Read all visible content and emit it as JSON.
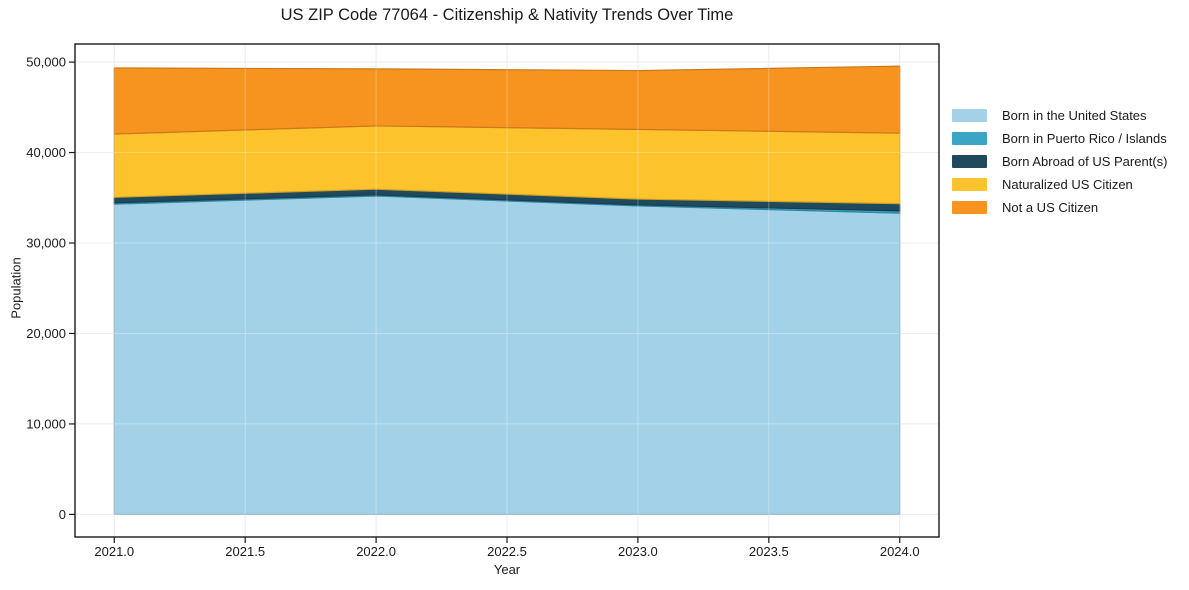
{
  "chart": {
    "title": "US ZIP Code 77064 - Citizenship & Nativity Trends Over Time",
    "xlabel": "Year",
    "ylabel": "Population"
  },
  "chart_data": {
    "type": "area",
    "stacked": true,
    "title": "US ZIP Code 77064 - Citizenship & Nativity Trends Over Time",
    "xlabel": "Year",
    "ylabel": "Population",
    "x": [
      2021,
      2022,
      2023,
      2024
    ],
    "series": [
      {
        "name": "Born in the United States",
        "color": "#a3d2e8",
        "values": [
          34300,
          35200,
          34100,
          33300
        ]
      },
      {
        "name": "Born in Puerto Rico / Islands",
        "color": "#3aa5c5",
        "values": [
          150,
          130,
          120,
          250
        ]
      },
      {
        "name": "Born Abroad of US Parent(s)",
        "color": "#1f4a5e",
        "values": [
          600,
          620,
          640,
          800
        ]
      },
      {
        "name": "Naturalized US Citizen",
        "color": "#fcc32d",
        "values": [
          7000,
          7000,
          7700,
          7800
        ]
      },
      {
        "name": "Not a US Citizen",
        "color": "#f7941f",
        "values": [
          7300,
          6300,
          6500,
          7400
        ]
      }
    ],
    "totals": [
      49350,
      49250,
      49060,
      49550
    ],
    "xlim": [
      2020.85,
      2024.15
    ],
    "ylim": [
      -2500,
      52000
    ],
    "x_ticks": [
      {
        "v": 2021.0,
        "label": "2021.0"
      },
      {
        "v": 2021.5,
        "label": "2021.5"
      },
      {
        "v": 2022.0,
        "label": "2022.0"
      },
      {
        "v": 2022.5,
        "label": "2022.5"
      },
      {
        "v": 2023.0,
        "label": "2023.0"
      },
      {
        "v": 2023.5,
        "label": "2023.5"
      },
      {
        "v": 2024.0,
        "label": "2024.0"
      }
    ],
    "y_ticks": [
      {
        "v": 0,
        "label": "0"
      },
      {
        "v": 10000,
        "label": "10,000"
      },
      {
        "v": 20000,
        "label": "20,000"
      },
      {
        "v": 30000,
        "label": "30,000"
      },
      {
        "v": 40000,
        "label": "40,000"
      },
      {
        "v": 50000,
        "label": "50,000"
      }
    ],
    "grid": true,
    "grid_color": "#e7e7e7",
    "axis_color": "#1a1a1a",
    "background": "#ffffff",
    "legend_position": "right"
  }
}
